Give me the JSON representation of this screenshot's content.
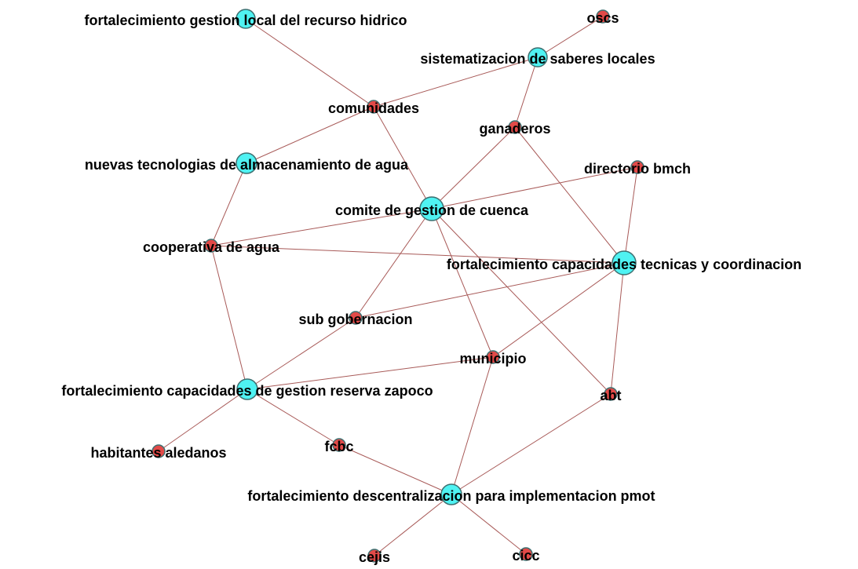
{
  "nodes": [
    {
      "label": "fortalecimiento gestion local del recurso hidrico",
      "color": "#4ff2f2"
    },
    {
      "label": "oscs",
      "color": "#e24a48"
    },
    {
      "label": "sistematizacion de saberes locales",
      "color": "#4ff2f2"
    },
    {
      "label": "comunidades",
      "color": "#e24a48"
    },
    {
      "label": "ganaderos",
      "color": "#e24a48"
    },
    {
      "label": "nuevas tecnologias de almacenamiento de agua",
      "color": "#4ff2f2"
    },
    {
      "label": "directorio bmch",
      "color": "#e24a48"
    },
    {
      "label": "comite de gestion de cuenca",
      "color": "#4ff2f2"
    },
    {
      "label": "cooperativa de agua",
      "color": "#e24a48"
    },
    {
      "label": "fortalecimiento capacidades tecnicas y coordinacion",
      "color": "#4ff2f2"
    },
    {
      "label": "sub gobernacion",
      "color": "#e24a48"
    },
    {
      "label": "municipio",
      "color": "#e24a48"
    },
    {
      "label": "fortalecimiento capacidades de gestion reserva zapoco",
      "color": "#4ff2f2"
    },
    {
      "label": "abt",
      "color": "#e24a48"
    },
    {
      "label": "habitantes aledanos",
      "color": "#e24a48"
    },
    {
      "label": "fcbc",
      "color": "#e24a48"
    },
    {
      "label": "fortalecimiento descentralizacion para implementacion pmot",
      "color": "#4ff2f2"
    },
    {
      "label": "cejis",
      "color": "#e24a48"
    },
    {
      "label": "cicc",
      "color": "#e24a48"
    }
  ]
}
